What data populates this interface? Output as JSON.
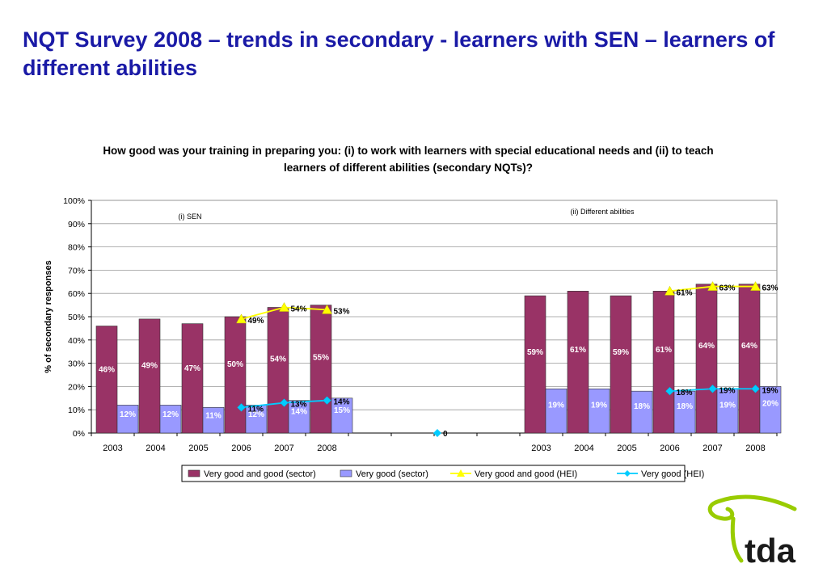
{
  "page": {
    "title": "NQT Survey 2008 – trends in secondary - learners with SEN – learners of different abilities",
    "logo_text": "tda"
  },
  "chart_data": {
    "type": "bar",
    "title": "How good was your training in preparing you: (i) to work with learners with special educational needs and (ii) to teach learners of different abilities (secondary NQTs)?",
    "ylabel": "% of secondary responses",
    "ylim": [
      0,
      100
    ],
    "yticks": [
      "0%",
      "10%",
      "20%",
      "30%",
      "40%",
      "50%",
      "60%",
      "70%",
      "80%",
      "90%",
      "100%"
    ],
    "grid": true,
    "legend_position": "bottom",
    "panels": [
      {
        "label": "(i) SEN",
        "categories": [
          "2003",
          "2004",
          "2005",
          "2006",
          "2007",
          "2008"
        ],
        "series": [
          {
            "name": "Very good and good (sector)",
            "kind": "bar",
            "color": "#993366",
            "values": [
              46,
              49,
              47,
              50,
              54,
              55
            ]
          },
          {
            "name": "Very good (sector)",
            "kind": "bar",
            "color": "#9999ff",
            "values": [
              12,
              12,
              11,
              12,
              14,
              15
            ]
          },
          {
            "name": "Very good and good (HEI)",
            "kind": "line",
            "color": "#ffff00",
            "values": [
              null,
              null,
              null,
              49,
              54,
              53
            ]
          },
          {
            "name": "Very good (HEI)",
            "kind": "line",
            "color": "#00ccff",
            "values": [
              null,
              null,
              null,
              11,
              13,
              14
            ]
          }
        ]
      },
      {
        "label": "(ii) Different abilities",
        "categories": [
          "2003",
          "2004",
          "2005",
          "2006",
          "2007",
          "2008"
        ],
        "series": [
          {
            "name": "Very good and good (sector)",
            "kind": "bar",
            "color": "#993366",
            "values": [
              59,
              61,
              59,
              61,
              64,
              64
            ]
          },
          {
            "name": "Very good (sector)",
            "kind": "bar",
            "color": "#9999ff",
            "values": [
              19,
              19,
              18,
              18,
              19,
              20
            ]
          },
          {
            "name": "Very good and good (HEI)",
            "kind": "line",
            "color": "#ffff00",
            "values": [
              null,
              null,
              null,
              61,
              63,
              63
            ]
          },
          {
            "name": "Very good (HEI)",
            "kind": "line",
            "color": "#00ccff",
            "values": [
              null,
              null,
              null,
              18,
              19,
              19
            ]
          }
        ]
      }
    ],
    "gap_markers": {
      "label": "0",
      "value": 0
    }
  }
}
